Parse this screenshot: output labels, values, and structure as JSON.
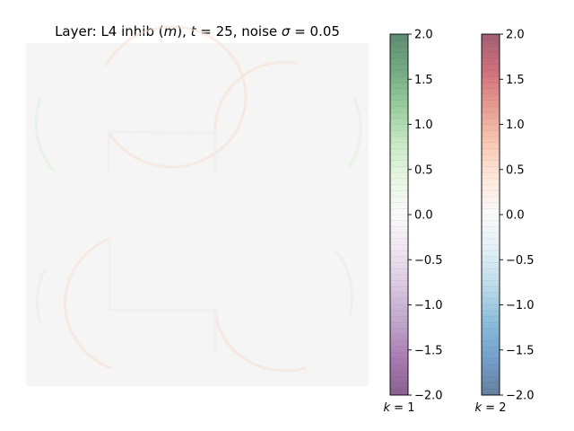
{
  "title": "Layer: L4 inhib (m), t = 25, noise σ = 0.05",
  "title_parts": {
    "prefix": "Layer: L4 inhib (",
    "var": "m",
    "mid1": "), ",
    "t_sym": "t",
    "t_eq": " = 25, noise ",
    "sigma_sym": "σ",
    "sigma_eq": " = 0.05"
  },
  "chart_data": {
    "type": "heatmap",
    "title": "Layer: L4 inhib (m), t = 25, noise σ = 0.05",
    "image": {
      "background": "#f5f5f5",
      "description_values": "near-zero field with four faint arcs (k=1 green, k=2 orange)",
      "axes_visible": false
    },
    "colorbars": [
      {
        "label": "k = 1",
        "label_sym": "k",
        "label_eq": " = 1",
        "colormap": [
          "#40004b",
          "#762a83",
          "#9970ab",
          "#c2a5cf",
          "#e7d4e8",
          "#f7f7f7",
          "#d9f0d3",
          "#a6dba0",
          "#5aae61",
          "#1b7837",
          "#00441b"
        ],
        "vmin": -2.0,
        "vmax": 2.0,
        "ticks": [
          "2.0",
          "1.5",
          "1.0",
          "0.5",
          "0.0",
          "−0.5",
          "−1.0",
          "−1.5",
          "−2.0"
        ],
        "tick_values": [
          2.0,
          1.5,
          1.0,
          0.5,
          0.0,
          -0.5,
          -1.0,
          -1.5,
          -2.0
        ]
      },
      {
        "label": "k = 2",
        "label_sym": "k",
        "label_eq": " = 2",
        "colormap": [
          "#053061",
          "#2166ac",
          "#4393c3",
          "#92c5de",
          "#d1e5f0",
          "#f7f7f7",
          "#fddbc7",
          "#f4a582",
          "#d6604d",
          "#b2182b",
          "#67001f"
        ],
        "vmin": -2.0,
        "vmax": 2.0,
        "ticks": [
          "2.0",
          "1.5",
          "1.0",
          "0.5",
          "0.0",
          "−0.5",
          "−1.0",
          "−1.5",
          "−2.0"
        ],
        "tick_values": [
          2.0,
          1.5,
          1.0,
          0.5,
          0.0,
          -0.5,
          -1.0,
          -1.5,
          -2.0
        ]
      }
    ]
  }
}
